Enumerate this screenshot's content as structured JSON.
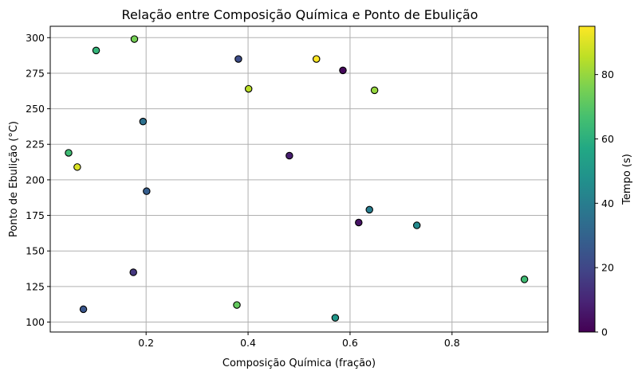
{
  "chart_data": {
    "type": "scatter",
    "title": "Relação entre Composição Química e Ponto de Ebulição",
    "xlabel": "Composição Química (fração)",
    "ylabel": "Ponto de Ebulição (°C)",
    "xlim": [
      0.012,
      0.988
    ],
    "ylim": [
      93,
      308
    ],
    "xticks": [
      0.2,
      0.4,
      0.6,
      0.8
    ],
    "xtick_labels": [
      "0.2",
      "0.4",
      "0.6",
      "0.8"
    ],
    "yticks": [
      100,
      125,
      150,
      175,
      200,
      225,
      250,
      275,
      300
    ],
    "ytick_labels": [
      "100",
      "125",
      "150",
      "175",
      "200",
      "225",
      "250",
      "275",
      "300"
    ],
    "grid": true,
    "colormap": "viridis",
    "point_edge_color": "#000000",
    "colorbar": {
      "label": "Tempo (s)",
      "range": [
        0,
        95
      ],
      "ticks": [
        0,
        20,
        40,
        60,
        80
      ],
      "tick_labels": [
        "0",
        "20",
        "40",
        "60",
        "80"
      ]
    },
    "points": [
      {
        "x": 0.102,
        "y": 291,
        "c": 62
      },
      {
        "x": 0.177,
        "y": 299,
        "c": 75
      },
      {
        "x": 0.381,
        "y": 285,
        "c": 22
      },
      {
        "x": 0.534,
        "y": 285,
        "c": 95
      },
      {
        "x": 0.586,
        "y": 277,
        "c": 2
      },
      {
        "x": 0.401,
        "y": 264,
        "c": 85
      },
      {
        "x": 0.648,
        "y": 263,
        "c": 80
      },
      {
        "x": 0.194,
        "y": 241,
        "c": 35
      },
      {
        "x": 0.048,
        "y": 219,
        "c": 65
      },
      {
        "x": 0.481,
        "y": 217,
        "c": 8
      },
      {
        "x": 0.065,
        "y": 209,
        "c": 90
      },
      {
        "x": 0.201,
        "y": 192,
        "c": 28
      },
      {
        "x": 0.638,
        "y": 179,
        "c": 40
      },
      {
        "x": 0.617,
        "y": 170,
        "c": 5
      },
      {
        "x": 0.731,
        "y": 168,
        "c": 45
      },
      {
        "x": 0.175,
        "y": 135,
        "c": 15
      },
      {
        "x": 0.942,
        "y": 130,
        "c": 65
      },
      {
        "x": 0.378,
        "y": 112,
        "c": 72
      },
      {
        "x": 0.077,
        "y": 109,
        "c": 25
      },
      {
        "x": 0.571,
        "y": 103,
        "c": 50
      }
    ]
  }
}
